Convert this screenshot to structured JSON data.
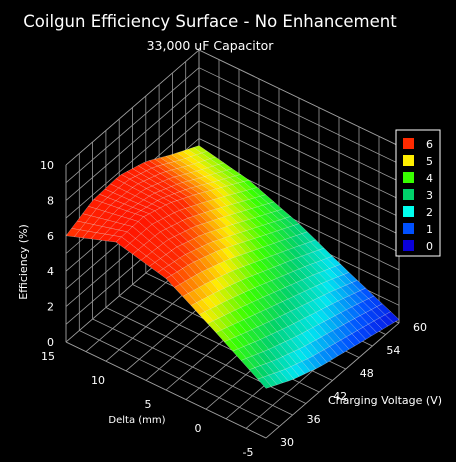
{
  "chart_data": {
    "type": "surface",
    "title": "Coilgun Efficiency Surface - No Enhancement",
    "subtitle": "33,000 uF Capacitor",
    "xlabel": "Delta (mm)",
    "ylabel": "Charging Voltage (V)",
    "zlabel": "Efficiency (%)",
    "x_ticks": [
      "15",
      "10",
      "5",
      "0",
      "-5"
    ],
    "y_ticks": [
      "30",
      "36",
      "42",
      "48",
      "54",
      "60"
    ],
    "z_ticks": [
      "0",
      "2",
      "4",
      "6",
      "8",
      "10"
    ],
    "xlim": [
      -5,
      15
    ],
    "ylim": [
      30,
      60
    ],
    "zlim": [
      0,
      10
    ],
    "legend": {
      "position": "right",
      "entries": [
        {
          "label": "6",
          "color": "#ff2a00"
        },
        {
          "label": "5",
          "color": "#ffee00"
        },
        {
          "label": "4",
          "color": "#38ff00"
        },
        {
          "label": "3",
          "color": "#00d26a"
        },
        {
          "label": "2",
          "color": "#00ffee"
        },
        {
          "label": "1",
          "color": "#0050ff"
        },
        {
          "label": "0",
          "color": "#0a00d8"
        }
      ]
    },
    "surface_samples": {
      "delta": [
        -5,
        0,
        5,
        10,
        15
      ],
      "voltage": [
        30,
        36,
        42,
        48,
        54,
        60
      ],
      "efficiency": [
        [
          2.8,
          4.6,
          6.3,
          7.0,
          6.0
        ],
        [
          2.0,
          4.0,
          5.9,
          7.1,
          6.7
        ],
        [
          1.4,
          3.4,
          5.3,
          6.6,
          6.8
        ],
        [
          1.0,
          2.8,
          4.5,
          5.8,
          6.3
        ],
        [
          0.6,
          2.2,
          3.7,
          4.9,
          5.4
        ],
        [
          0.2,
          1.5,
          2.9,
          4.0,
          4.6
        ]
      ]
    }
  }
}
